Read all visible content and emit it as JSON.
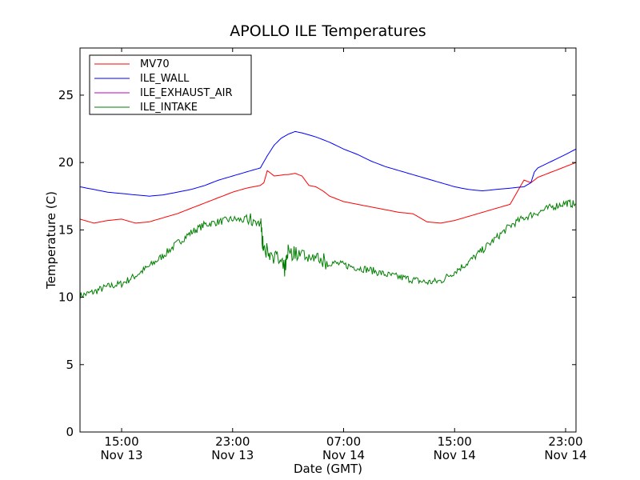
{
  "chart_data": {
    "type": "line",
    "title": "APOLLO ILE Temperatures",
    "xlabel": "Date (GMT)",
    "ylabel": "Temperature (C)",
    "ylim": [
      0,
      28.5
    ],
    "xlim": [
      "2013-11-13 12:00",
      "2013-11-14 23:45"
    ],
    "grid": false,
    "legend_position": "top-left",
    "y_ticks": [
      "0",
      "5",
      "10",
      "15",
      "20",
      "25"
    ],
    "x_ticks": [
      {
        "time": "15:00",
        "date": "Nov 13"
      },
      {
        "time": "23:00",
        "date": "Nov 13"
      },
      {
        "time": "07:00",
        "date": "Nov 14"
      },
      {
        "time": "15:00",
        "date": "Nov 14"
      },
      {
        "time": "23:00",
        "date": "Nov 14"
      }
    ],
    "series": [
      {
        "name": "MV70",
        "color": "#ff0000",
        "x": [
          "2013-11-13 12:00",
          "2013-11-13 13:00",
          "2013-11-13 14:00",
          "2013-11-13 15:00",
          "2013-11-13 16:00",
          "2013-11-13 17:00",
          "2013-11-13 18:00",
          "2013-11-13 19:00",
          "2013-11-13 20:00",
          "2013-11-13 21:00",
          "2013-11-13 22:00",
          "2013-11-13 23:00",
          "2013-11-14 00:00",
          "2013-11-14 01:00",
          "2013-11-14 01:15",
          "2013-11-14 01:30",
          "2013-11-14 02:00",
          "2013-11-14 02:45",
          "2013-11-14 03:00",
          "2013-11-14 03:30",
          "2013-11-14 04:00",
          "2013-11-14 04:30",
          "2013-11-14 05:00",
          "2013-11-14 05:30",
          "2013-11-14 06:00",
          "2013-11-14 07:00",
          "2013-11-14 08:00",
          "2013-11-14 09:00",
          "2013-11-14 10:00",
          "2013-11-14 11:00",
          "2013-11-14 12:00",
          "2013-11-14 13:00",
          "2013-11-14 14:00",
          "2013-11-14 15:00",
          "2013-11-14 16:00",
          "2013-11-14 17:00",
          "2013-11-14 18:00",
          "2013-11-14 19:00",
          "2013-11-14 20:00",
          "2013-11-14 20:30",
          "2013-11-14 20:45",
          "2013-11-14 21:00",
          "2013-11-14 22:00",
          "2013-11-14 23:00",
          "2013-11-14 23:45"
        ],
        "values": [
          15.8,
          15.5,
          15.7,
          15.8,
          15.5,
          15.6,
          15.9,
          16.2,
          16.6,
          17.0,
          17.4,
          17.8,
          18.1,
          18.3,
          18.5,
          19.4,
          19.0,
          19.1,
          19.1,
          19.2,
          19.0,
          18.3,
          18.2,
          17.9,
          17.5,
          17.1,
          16.9,
          16.7,
          16.5,
          16.3,
          16.2,
          15.6,
          15.5,
          15.7,
          16.0,
          16.3,
          16.6,
          16.9,
          18.7,
          18.5,
          18.7,
          18.9,
          19.3,
          19.7,
          20.0
        ]
      },
      {
        "name": "ILE_WALL",
        "color": "#0000ff",
        "x": [
          "2013-11-13 12:00",
          "2013-11-13 13:00",
          "2013-11-13 14:00",
          "2013-11-13 15:00",
          "2013-11-13 16:00",
          "2013-11-13 17:00",
          "2013-11-13 18:00",
          "2013-11-13 19:00",
          "2013-11-13 20:00",
          "2013-11-13 21:00",
          "2013-11-13 22:00",
          "2013-11-13 23:00",
          "2013-11-14 00:00",
          "2013-11-14 01:00",
          "2013-11-14 01:30",
          "2013-11-14 02:00",
          "2013-11-14 02:30",
          "2013-11-14 03:00",
          "2013-11-14 03:30",
          "2013-11-14 04:00",
          "2013-11-14 05:00",
          "2013-11-14 06:00",
          "2013-11-14 07:00",
          "2013-11-14 08:00",
          "2013-11-14 09:00",
          "2013-11-14 10:00",
          "2013-11-14 11:00",
          "2013-11-14 12:00",
          "2013-11-14 13:00",
          "2013-11-14 14:00",
          "2013-11-14 15:00",
          "2013-11-14 16:00",
          "2013-11-14 17:00",
          "2013-11-14 18:00",
          "2013-11-14 19:00",
          "2013-11-14 20:00",
          "2013-11-14 20:30",
          "2013-11-14 20:45",
          "2013-11-14 21:00",
          "2013-11-14 22:00",
          "2013-11-14 23:00",
          "2013-11-14 23:45"
        ],
        "values": [
          18.2,
          18.0,
          17.8,
          17.7,
          17.6,
          17.5,
          17.6,
          17.8,
          18.0,
          18.3,
          18.7,
          19.0,
          19.3,
          19.6,
          20.5,
          21.3,
          21.8,
          22.1,
          22.3,
          22.2,
          21.9,
          21.5,
          21.0,
          20.6,
          20.1,
          19.7,
          19.4,
          19.1,
          18.8,
          18.5,
          18.2,
          18.0,
          17.9,
          18.0,
          18.1,
          18.2,
          18.5,
          19.3,
          19.6,
          20.1,
          20.6,
          21.0
        ]
      },
      {
        "name": "ILE_EXHAUST_AIR",
        "color": "#bf00bf",
        "x": [],
        "values": []
      },
      {
        "name": "ILE_INTAKE",
        "color": "#007f00",
        "x": [
          "2013-11-13 12:00",
          "2013-11-13 13:00",
          "2013-11-13 14:00",
          "2013-11-13 15:00",
          "2013-11-13 16:00",
          "2013-11-13 17:00",
          "2013-11-13 18:00",
          "2013-11-13 19:00",
          "2013-11-13 20:00",
          "2013-11-13 21:00",
          "2013-11-13 22:00",
          "2013-11-13 23:00",
          "2013-11-14 00:00",
          "2013-11-14 01:00",
          "2013-11-14 01:15",
          "2013-11-14 02:00",
          "2013-11-14 02:45",
          "2013-11-14 03:00",
          "2013-11-14 04:00",
          "2013-11-14 05:00",
          "2013-11-14 06:00",
          "2013-11-14 07:00",
          "2013-11-14 08:00",
          "2013-11-14 09:00",
          "2013-11-14 10:00",
          "2013-11-14 11:00",
          "2013-11-14 12:00",
          "2013-11-14 13:00",
          "2013-11-14 14:00",
          "2013-11-14 15:00",
          "2013-11-14 16:00",
          "2013-11-14 17:00",
          "2013-11-14 18:00",
          "2013-11-14 19:00",
          "2013-11-14 20:00",
          "2013-11-14 21:00",
          "2013-11-14 22:00",
          "2013-11-14 23:00",
          "2013-11-14 23:45"
        ],
        "values": [
          10.1,
          10.4,
          10.8,
          11.0,
          11.6,
          12.3,
          13.1,
          14.0,
          14.8,
          15.4,
          15.6,
          15.8,
          15.7,
          15.6,
          13.5,
          13.2,
          12.0,
          13.4,
          13.2,
          12.8,
          12.6,
          12.4,
          12.2,
          12.0,
          11.7,
          11.5,
          11.3,
          11.1,
          11.2,
          11.9,
          12.6,
          13.5,
          14.4,
          15.3,
          15.9,
          16.3,
          16.7,
          17.0,
          16.9
        ]
      }
    ]
  }
}
